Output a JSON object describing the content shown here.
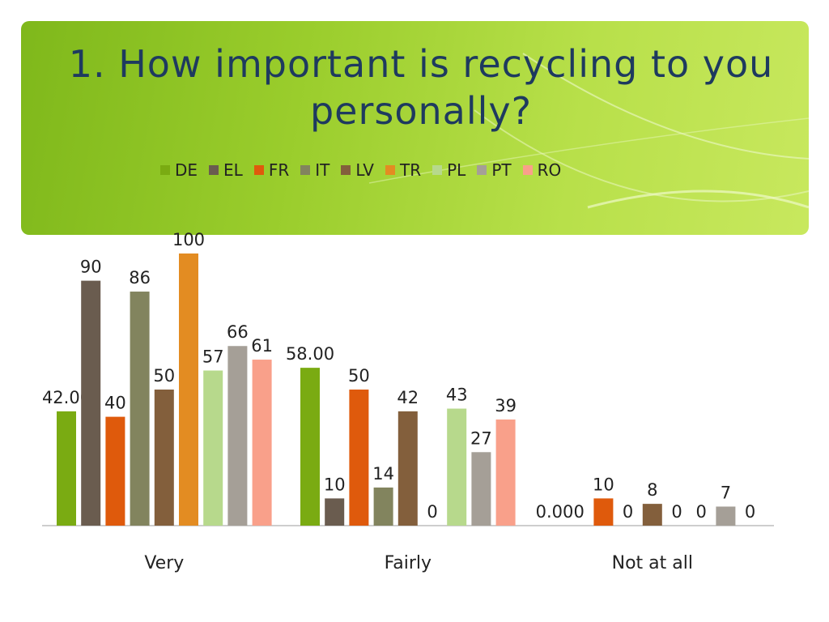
{
  "title": "1. How important is recycling to you personally?",
  "chart_data": {
    "type": "bar",
    "title": "1. How important is recycling to you personally?",
    "categories": [
      "Very",
      "Fairly",
      "Not at all"
    ],
    "legend_position": "top",
    "ylim": [
      0,
      100
    ],
    "grid": false,
    "series": [
      {
        "name": "DE",
        "color": "#7aab12",
        "values": [
          42,
          58,
          0
        ],
        "labels": [
          "42.00",
          "58.00",
          "0.00"
        ]
      },
      {
        "name": "EL",
        "color": "#6a5c4f",
        "values": [
          90,
          10,
          0
        ],
        "labels": [
          "90",
          "10",
          "0"
        ]
      },
      {
        "name": "FR",
        "color": "#df5a0c",
        "values": [
          40,
          50,
          10
        ],
        "labels": [
          "40",
          "50",
          "10"
        ]
      },
      {
        "name": "IT",
        "color": "#82845e",
        "values": [
          86,
          14,
          0
        ],
        "labels": [
          "86",
          "14",
          "0"
        ]
      },
      {
        "name": "LV",
        "color": "#835f3c",
        "values": [
          50,
          42,
          8
        ],
        "labels": [
          "50",
          "42",
          "8"
        ]
      },
      {
        "name": "TR",
        "color": "#e38c22",
        "values": [
          100,
          0,
          0
        ],
        "labels": [
          "100",
          "0",
          "0"
        ]
      },
      {
        "name": "PL",
        "color": "#b7d98c",
        "values": [
          57,
          43,
          0
        ],
        "labels": [
          "57",
          "43",
          "0"
        ]
      },
      {
        "name": "PT",
        "color": "#a59f97",
        "values": [
          66,
          27,
          7
        ],
        "labels": [
          "66",
          "27",
          "7"
        ]
      },
      {
        "name": "RO",
        "color": "#f9a08a",
        "values": [
          61,
          39,
          0
        ],
        "labels": [
          "61",
          "39",
          "0"
        ]
      }
    ]
  }
}
